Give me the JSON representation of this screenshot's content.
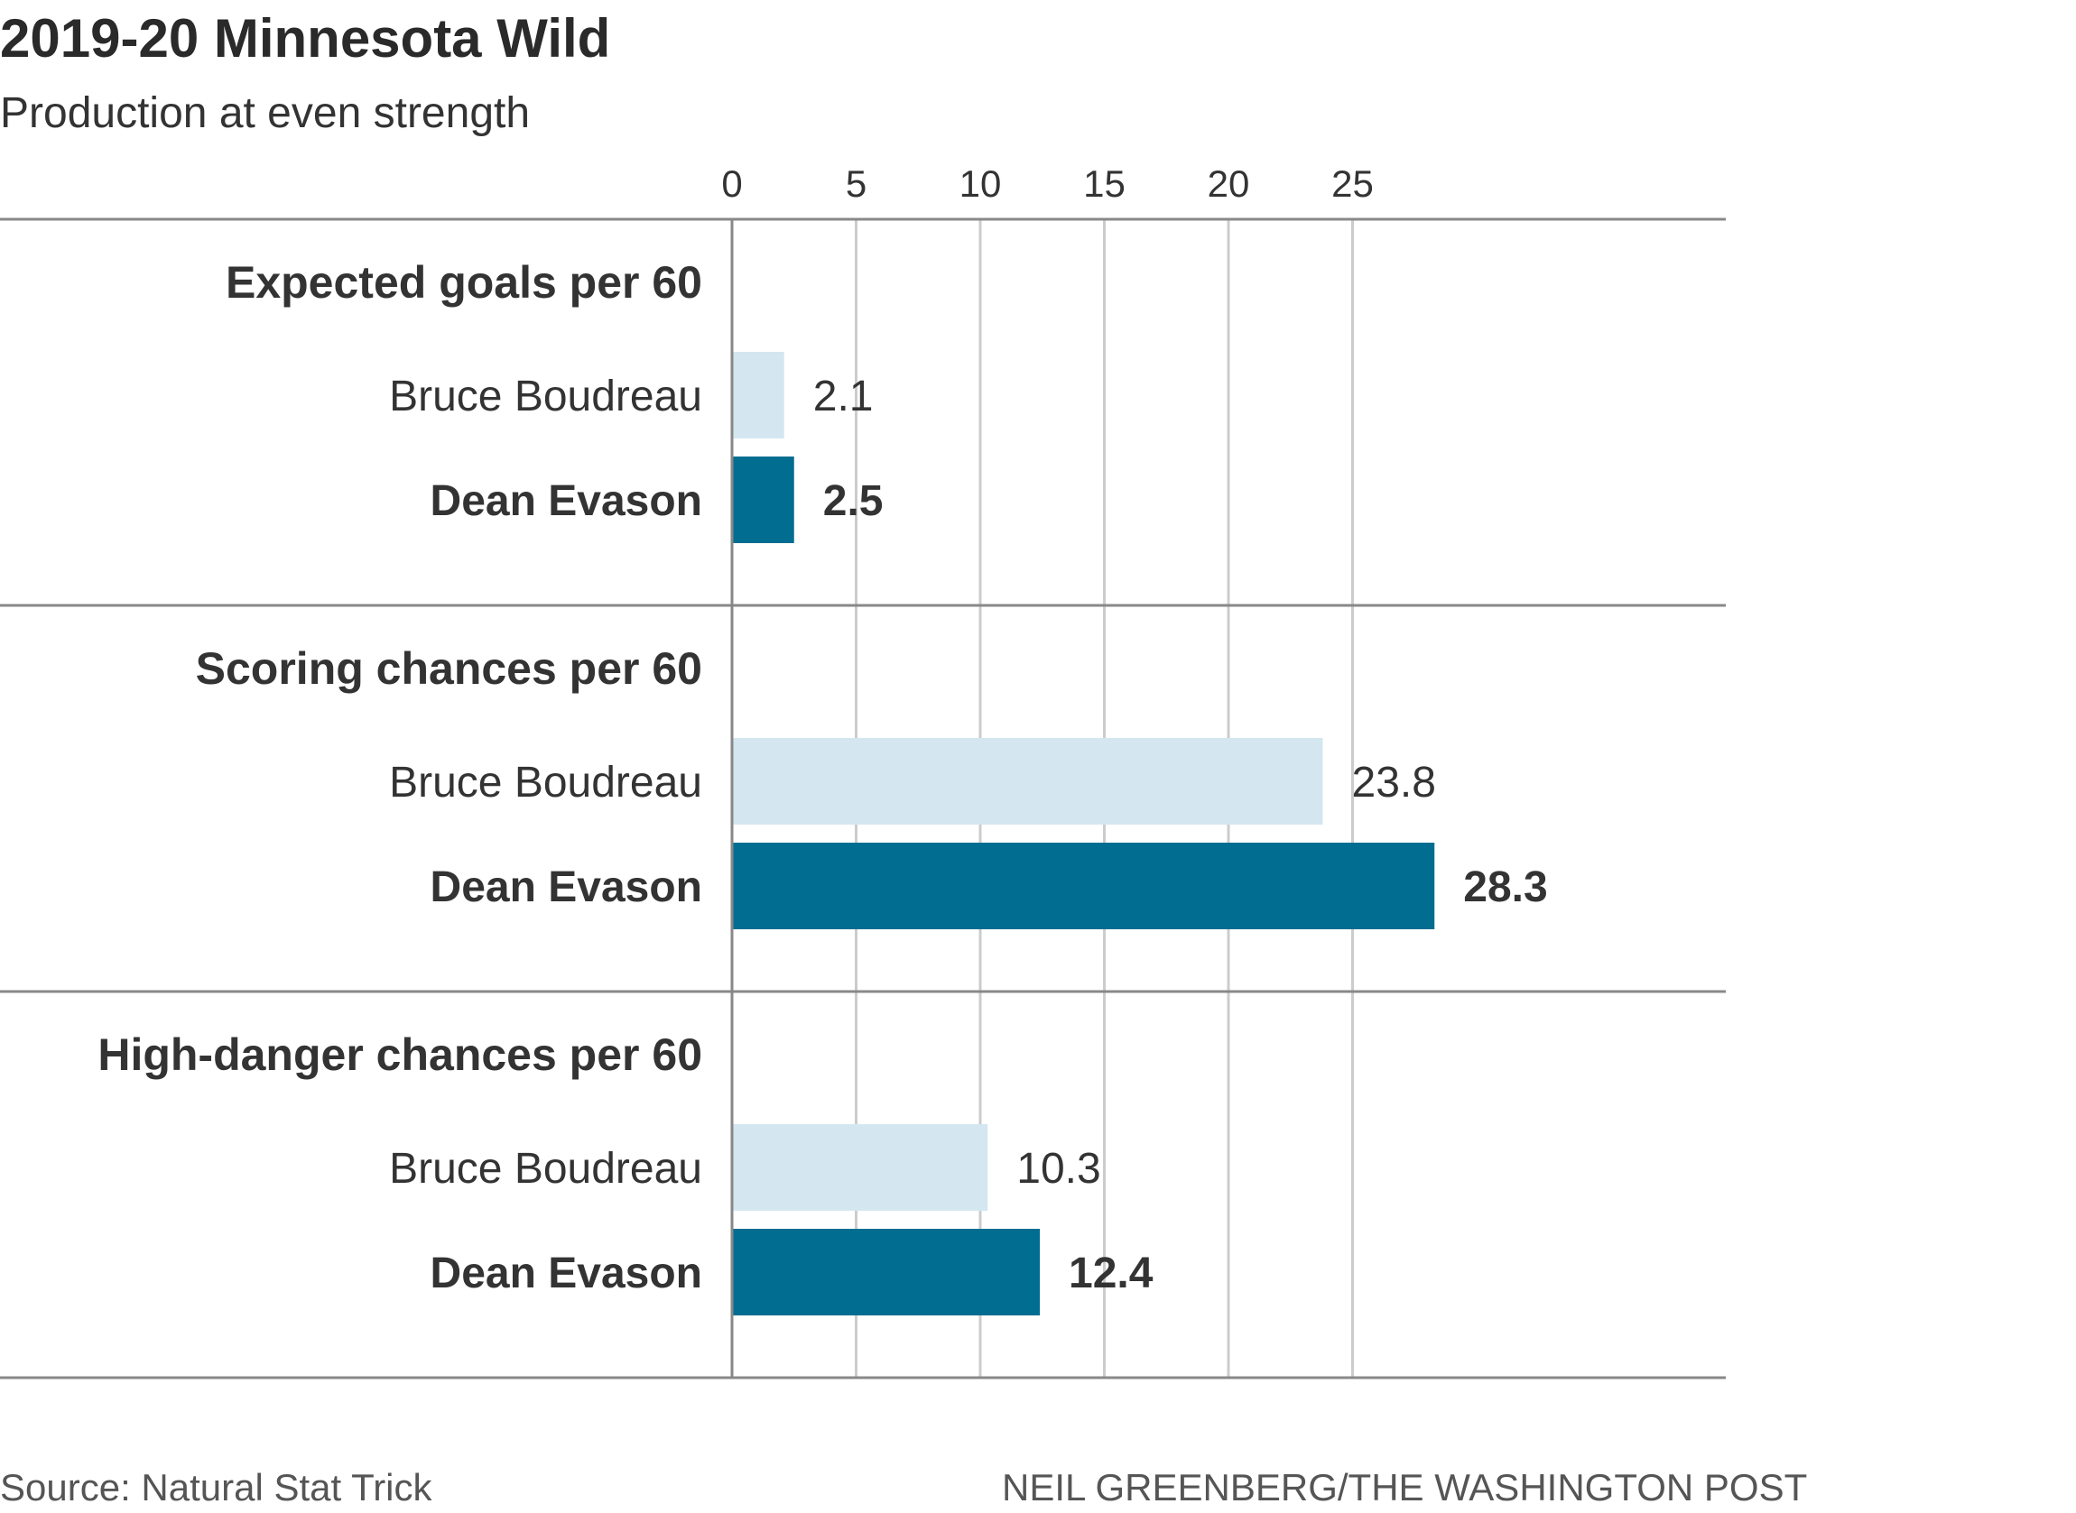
{
  "title": "2019-20 Minnesota Wild",
  "subtitle": "Production at even strength",
  "source": "Source: Natural Stat Trick",
  "credit": "NEIL GREENBERG/THE WASHINGTON POST",
  "colors": {
    "boudreau": "#d4e7f0",
    "evason": "#006d91",
    "grid": "#cccccc",
    "divider": "#888888",
    "text": "#333333"
  },
  "chart_data": {
    "type": "bar",
    "orientation": "horizontal",
    "title": "2019-20 Minnesota Wild",
    "subtitle": "Production at even strength",
    "xlim": [
      0,
      30
    ],
    "xticks": [
      0,
      5,
      10,
      15,
      20,
      25
    ],
    "grid": true,
    "groups": [
      {
        "label": "Expected goals per 60",
        "bars": [
          {
            "name": "Bruce Boudreau",
            "value": 2.1,
            "value_label": "2.1",
            "emphasis": false
          },
          {
            "name": "Dean Evason",
            "value": 2.5,
            "value_label": "2.5",
            "emphasis": true
          }
        ]
      },
      {
        "label": "Scoring chances per 60",
        "bars": [
          {
            "name": "Bruce Boudreau",
            "value": 23.8,
            "value_label": "23.8",
            "emphasis": false
          },
          {
            "name": "Dean Evason",
            "value": 28.3,
            "value_label": "28.3",
            "emphasis": true
          }
        ]
      },
      {
        "label": "High-danger chances per 60",
        "bars": [
          {
            "name": "Bruce Boudreau",
            "value": 10.3,
            "value_label": "10.3",
            "emphasis": false
          },
          {
            "name": "Dean Evason",
            "value": 12.4,
            "value_label": "12.4",
            "emphasis": true
          }
        ]
      }
    ]
  }
}
